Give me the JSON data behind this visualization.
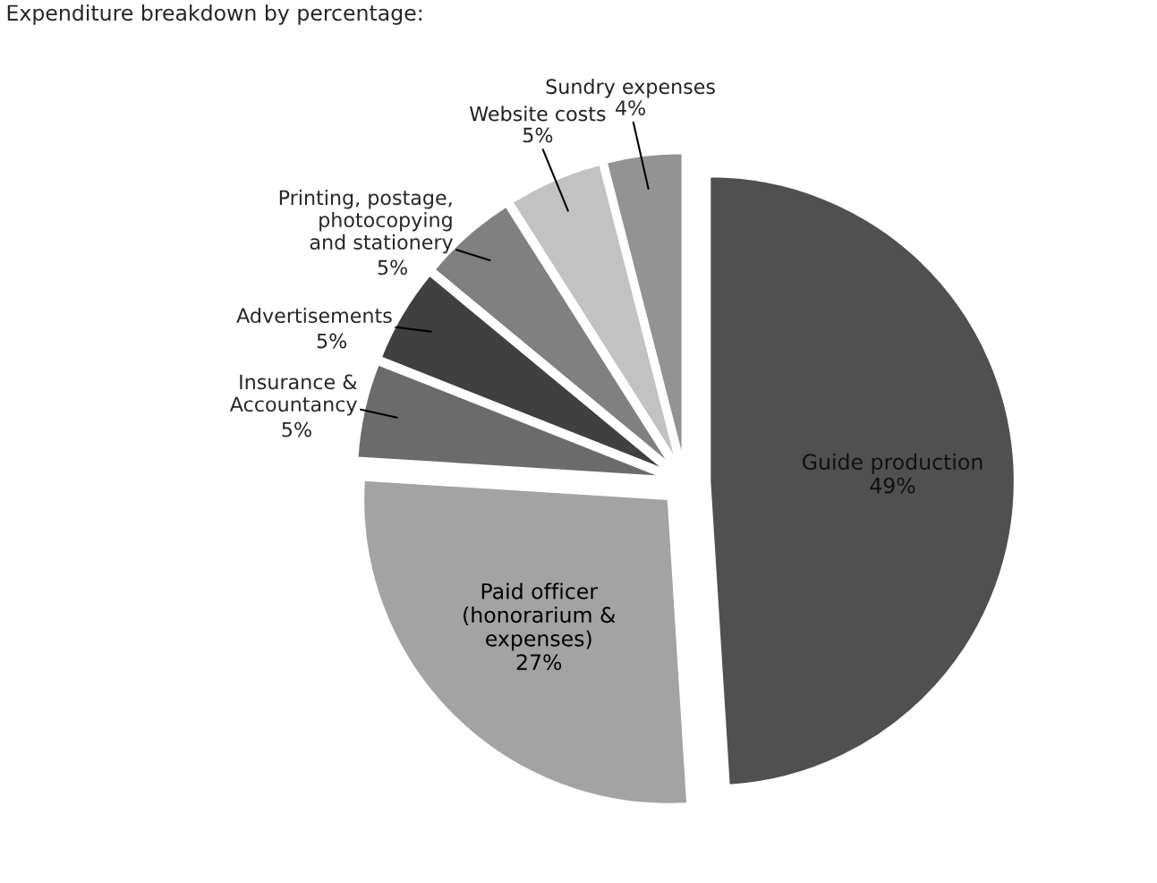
{
  "chart_data": {
    "type": "pie",
    "title": "Expenditure breakdown by percentage:",
    "categories": [
      "Guide production",
      "Paid officer\n(honorarium &\nexpenses)",
      "Insurance &\nAccountancy",
      "Advertisements",
      "Printing, postage,\nphotocopying\nand stationery",
      "Website costs",
      "Sundry expenses"
    ],
    "values": [
      49,
      27,
      5,
      5,
      5,
      5,
      4
    ],
    "value_labels": [
      "49%",
      "27%",
      "5%",
      "5%",
      "5%",
      "5%",
      "4%"
    ],
    "colors": [
      "#505050",
      "#a3a3a3",
      "#6b6b6b",
      "#404040",
      "#808080",
      "#c2c2c2",
      "#939393"
    ],
    "legend": false
  }
}
